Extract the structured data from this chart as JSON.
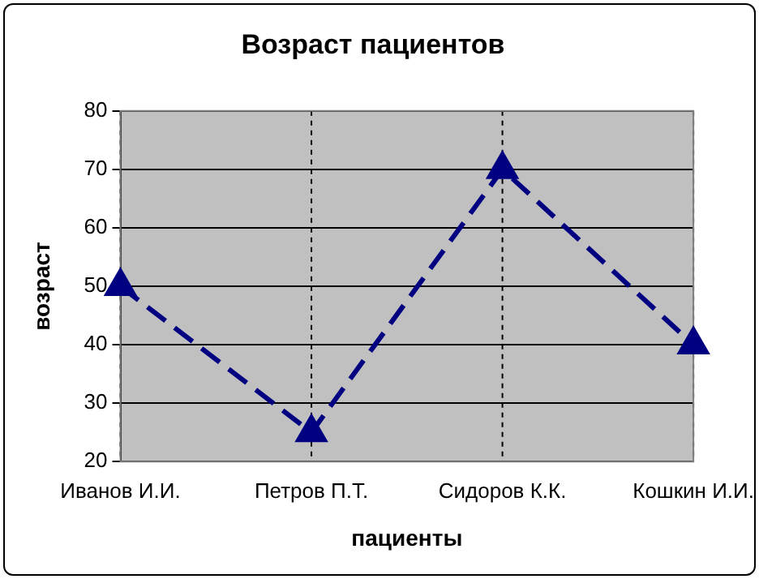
{
  "chart_data": {
    "type": "line",
    "title": "Возраст пациентов",
    "xlabel": "пациенты",
    "ylabel": "возраст",
    "categories": [
      "Иванов И.И.",
      "Петров П.Т.",
      "Сидоров К.К.",
      "Кошкин И.И."
    ],
    "series": [
      {
        "color": "#000080",
        "values": [
          50,
          25,
          70,
          40
        ]
      }
    ],
    "ylim": [
      20,
      80
    ],
    "yticks": [
      20,
      30,
      40,
      50,
      60,
      70,
      80
    ],
    "grid": true,
    "legend": false,
    "marker": "triangle",
    "line_style": "dashed"
  }
}
